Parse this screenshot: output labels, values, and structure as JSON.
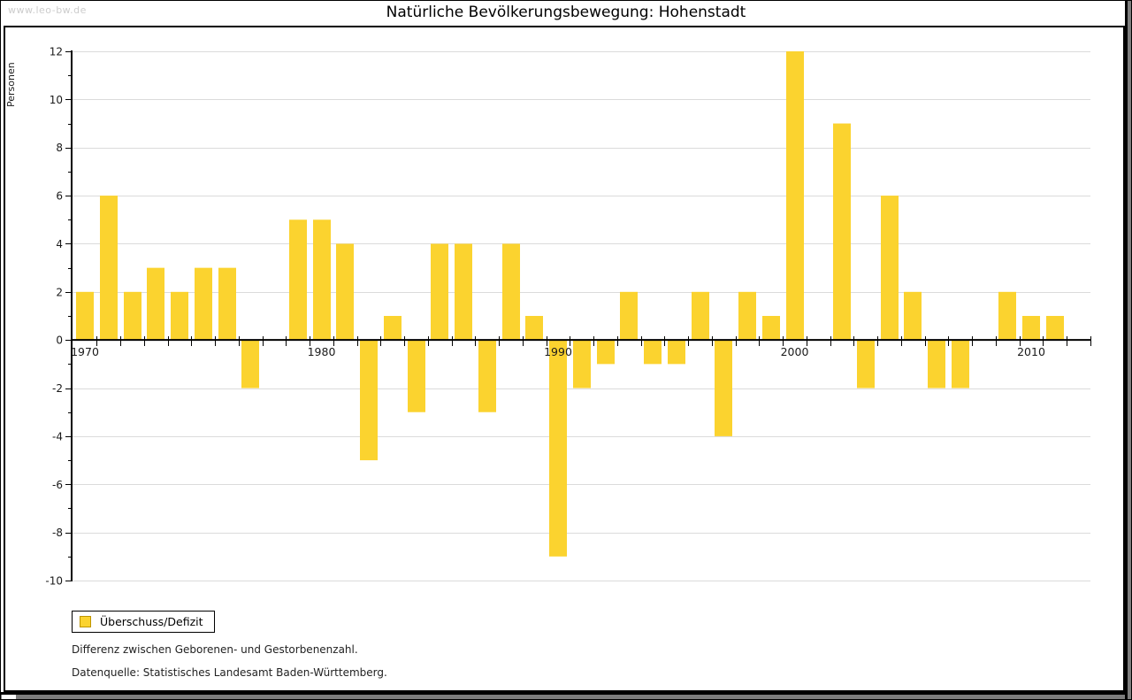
{
  "window": {
    "watermark": "www.leo-bw.de",
    "title": "Natürliche Bevölkerungsbewegung: Hohenstadt"
  },
  "legend": {
    "label": "Überschuss/Defizit"
  },
  "notes": {
    "line1": "Differenz zwischen Geborenen- und Gestorbenenzahl.",
    "line2": "Datenquelle: Statistisches Landesamt Baden-Württemberg."
  },
  "colors": {
    "bar": "#FBD32F",
    "bar_border": "#BE9500",
    "grid": "#DBDBDB",
    "axis": "#000000",
    "shadow": "#7d7d7d",
    "watermark": "#cccccc",
    "text": "#1a1a1a"
  },
  "chart_data": {
    "type": "bar",
    "title": "Natürliche Bevölkerungsbewegung: Hohenstadt",
    "xlabel": "",
    "ylabel": "Personen",
    "ylim": [
      -10,
      12
    ],
    "ytick_step": 2,
    "grid": true,
    "legend_position": "bottom-left",
    "series_name": "Überschuss/Defizit",
    "labeled_xticks": [
      1970,
      1980,
      1990,
      2000,
      2010
    ],
    "categories": [
      1970,
      1971,
      1972,
      1973,
      1974,
      1975,
      1976,
      1977,
      1978,
      1979,
      1980,
      1981,
      1982,
      1983,
      1984,
      1985,
      1986,
      1987,
      1988,
      1989,
      1990,
      1991,
      1992,
      1993,
      1994,
      1995,
      1996,
      1997,
      1998,
      1999,
      2000,
      2001,
      2002,
      2003,
      2004,
      2005,
      2006,
      2007,
      2008,
      2009,
      2010,
      2011
    ],
    "values": [
      2,
      6,
      2,
      3,
      2,
      3,
      3,
      -2,
      0,
      5,
      5,
      4,
      -5,
      1,
      -3,
      4,
      4,
      -3,
      4,
      1,
      -9,
      -2,
      -1,
      2,
      -1,
      -1,
      2,
      -4,
      2,
      1,
      12,
      0,
      9,
      -2,
      6,
      2,
      -2,
      -2,
      0,
      2,
      1,
      1
    ]
  }
}
